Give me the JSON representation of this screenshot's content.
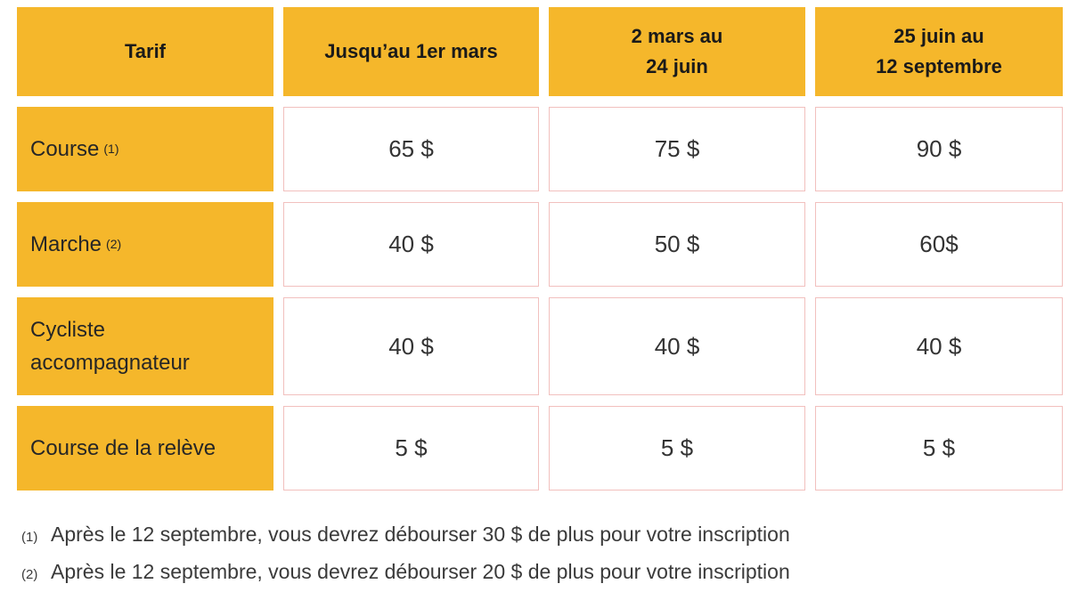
{
  "colors": {
    "header_bg": "#F5B72B",
    "cell_border": "#F2C0BE",
    "text_dark": "#1a1a1a",
    "text_body": "#3a3a3a"
  },
  "table": {
    "header": {
      "col0": "Tarif",
      "col1": "Jusqu’au 1er mars",
      "col2": "2 mars au\n24 juin",
      "col3": "25 juin au\n12 septembre"
    },
    "rows": [
      {
        "label": "Course",
        "sup": "(1)",
        "values": [
          "65 $",
          "75 $",
          "90 $"
        ]
      },
      {
        "label": "Marche",
        "sup": "(2)",
        "values": [
          "40 $",
          "50 $",
          "60$"
        ]
      },
      {
        "label": "Cycliste accompagnateur",
        "sup": "",
        "values": [
          "40 $",
          "40 $",
          "40 $"
        ]
      },
      {
        "label": "Course de la relève",
        "sup": "",
        "values": [
          "5 $",
          "5 $",
          "5 $"
        ]
      }
    ]
  },
  "footnotes": [
    {
      "marker": "(1)",
      "text": "Après le 12 septembre, vous devrez débourser 30 $ de plus pour votre inscription"
    },
    {
      "marker": "(2)",
      "text": "Après le 12 septembre, vous devrez débourser 20 $ de plus pour votre inscription"
    }
  ]
}
